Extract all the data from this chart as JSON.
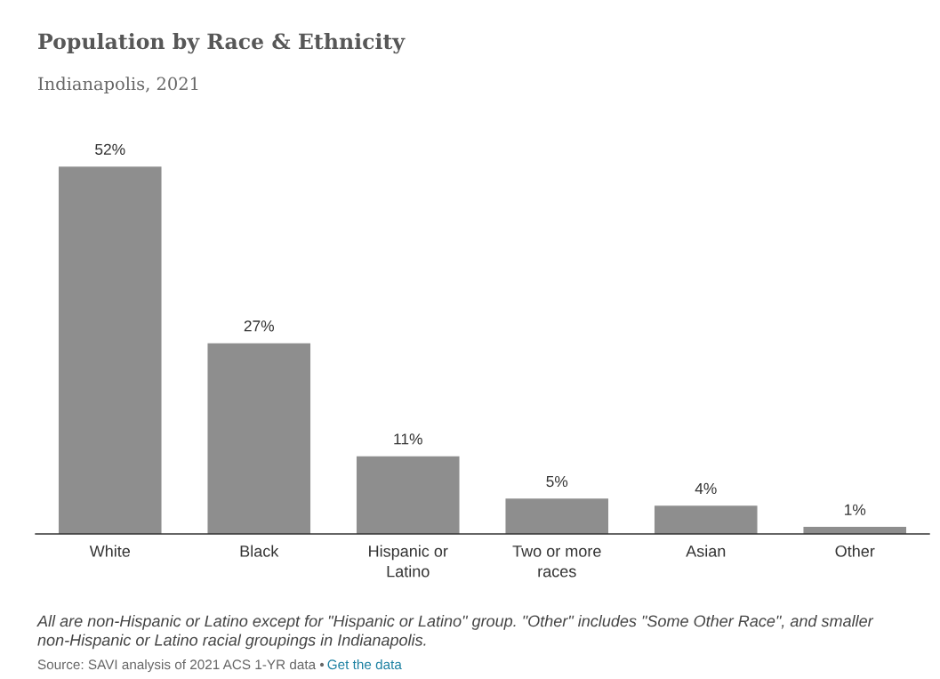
{
  "chart_data": {
    "type": "bar",
    "title": "Population by Race & Ethnicity",
    "subtitle": "Indianapolis, 2021",
    "categories": [
      "White",
      "Black",
      "Hispanic or\nLatino",
      "Two or more\nraces",
      "Asian",
      "Other"
    ],
    "values": [
      52,
      27,
      11,
      5,
      4,
      1
    ],
    "color": "#8e8e8e",
    "value_labels": [
      "52%",
      "27%",
      "11%",
      "5%",
      "4%",
      "1%"
    ],
    "tick_labels": "x",
    "grid": false,
    "legend": false,
    "annotations": [
      "All are non-Hispanic or Latino except for \"Hispanic or Latino\" group. \"Other\" includes \"Some Other Race\", and smaller non-Hispanic or Latino racial groupings in Indianapolis.",
      "Source: SAVI analysis of 2021 ACS 1-YR data •",
      "Get the data"
    ]
  }
}
